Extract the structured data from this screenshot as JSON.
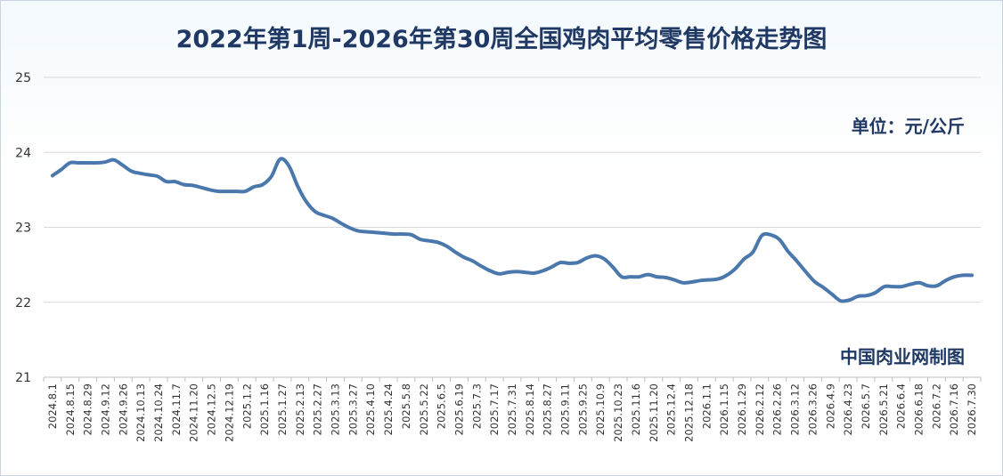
{
  "chart_data": {
    "type": "line",
    "title": "2022年第1周-2026年第30周全国鸡肉平均零售价格走势图",
    "unit_label": "单位：元/公斤",
    "source_label": "中国肉业网制图",
    "xlabel": "",
    "ylabel": "",
    "ylim": [
      21,
      25
    ],
    "yticks": [
      "21",
      "22",
      "23",
      "24",
      "25"
    ],
    "grid": true,
    "line_color": "#4a78ad",
    "x_tick_labels": [
      "2024.8.1",
      "2024.8.15",
      "2024.8.29",
      "2024.9.12",
      "2024.9.26",
      "2024.10.13",
      "2024.10.24",
      "2024.11.7",
      "2024.11.20",
      "2024.12.5",
      "2024.12.19",
      "2025.1.2",
      "2025.1.16",
      "2025.1.27",
      "2025.2.13",
      "2025.2.27",
      "2025.3.13",
      "2025.3.27",
      "2025.4.10",
      "2025.4.24",
      "2025.5.8",
      "2025.5.22",
      "2025.6.5",
      "2025.6.19",
      "2025.7.3",
      "2025.7.17",
      "2025.7.31",
      "2025.8.14",
      "2025.8.27",
      "2025.9.11",
      "2025.9.25",
      "2025.10.9",
      "2025.10.23",
      "2025.11.6",
      "2025.11.20",
      "2025.12.4",
      "2025.12.18",
      "2026.1.1",
      "2026.1.15",
      "2026.1.29",
      "2026.2.12",
      "2026.2.26",
      "2026.3.12",
      "2026.3.26",
      "2026.4.9",
      "2026.4.23",
      "2026.5.7",
      "2026.5.21",
      "2026.6.4",
      "2026.6.18",
      "2026.7.2",
      "2026.7.16",
      "2026.7.30"
    ],
    "series": [
      {
        "values": [
          23.69,
          23.77,
          23.86,
          23.86,
          23.86,
          23.86,
          23.87,
          23.9,
          23.83,
          23.75,
          23.72,
          23.7,
          23.68,
          23.61,
          23.61,
          23.57,
          23.56,
          23.53,
          23.5,
          23.48,
          23.48,
          23.48,
          23.48,
          23.54,
          23.57,
          23.68,
          23.91,
          23.82,
          23.55,
          23.34,
          23.21,
          23.16,
          23.12,
          23.05,
          22.99,
          22.95,
          22.94,
          22.93,
          22.92,
          22.91,
          22.91,
          22.9,
          22.84,
          22.82,
          22.8,
          22.75,
          22.67,
          22.6,
          22.55,
          22.48,
          22.42,
          22.38,
          22.4,
          22.41,
          22.4,
          22.39,
          22.42,
          22.47,
          22.53,
          22.52,
          22.53,
          22.59,
          22.62,
          22.58,
          22.47,
          22.34,
          22.34,
          22.34,
          22.37,
          22.34,
          22.33,
          22.3,
          22.26,
          22.27,
          22.29,
          22.3,
          22.31,
          22.36,
          22.45,
          22.58,
          22.67,
          22.89,
          22.9,
          22.84,
          22.68,
          22.55,
          22.41,
          22.28,
          22.2,
          22.11,
          22.02,
          22.03,
          22.08,
          22.09,
          22.13,
          22.21,
          22.21,
          22.21,
          22.24,
          22.26,
          22.22,
          22.22,
          22.29,
          22.34,
          22.36,
          22.36
        ]
      }
    ]
  }
}
